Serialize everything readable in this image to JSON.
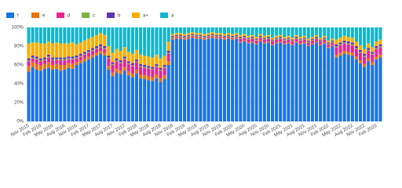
{
  "chart_data": {
    "type": "stacked_bar",
    "categories": [
      "Nov 2015",
      null,
      null,
      "Feb 2016",
      null,
      null,
      "May 2016",
      null,
      null,
      "Aug 2016",
      null,
      null,
      "Nov 2016",
      null,
      null,
      "Feb 2017",
      null,
      null,
      "May 2017",
      null,
      null,
      "Aug 2017",
      null,
      null,
      "Nov 2017",
      null,
      null,
      "Feb 2018",
      null,
      null,
      "May 2018",
      null,
      null,
      "Aug 2018",
      null,
      null,
      "Nov 2018",
      null,
      null,
      "Feb 2019",
      null,
      null,
      "May 2019",
      null,
      null,
      "Aug 2019",
      null,
      null,
      "Nov 2019",
      null,
      null,
      "Feb 2020",
      null,
      null,
      "May 2020",
      null,
      null,
      "Aug 2020",
      null,
      null,
      "Nov 2020",
      null,
      null,
      "Feb 2021",
      null,
      null,
      "May 2021",
      null,
      null,
      "Aug 2021",
      null,
      null,
      "Nov 2021",
      null,
      null,
      "Feb 2022",
      null,
      null,
      "May 2022",
      null,
      null,
      "Aug 2022",
      null,
      null,
      "Nov 2022",
      null,
      null,
      "Feb 2023",
      null
    ],
    "series": [
      {
        "name": "f",
        "color": "#1a73e8",
        "values": [
          53,
          58,
          55,
          54,
          56,
          57,
          55,
          56,
          54,
          55,
          57,
          56,
          60,
          62,
          64,
          66,
          68,
          70,
          72,
          70,
          55,
          48,
          52,
          50,
          54,
          49,
          47,
          51,
          46,
          45,
          44,
          43,
          46,
          42,
          45,
          60,
          87,
          88,
          88,
          87,
          88,
          89,
          88,
          88,
          87,
          88,
          89,
          88,
          88,
          87,
          88,
          87,
          88,
          84,
          85,
          83,
          84,
          82,
          85,
          83,
          84,
          81,
          83,
          84,
          82,
          83,
          81,
          84,
          82,
          83,
          80,
          82,
          84,
          81,
          83,
          78,
          80,
          68,
          70,
          72,
          71,
          70,
          66,
          62,
          58,
          64,
          60,
          66,
          68
        ]
      },
      {
        "name": "e",
        "color": "#e8710a",
        "values": [
          6,
          5,
          6,
          5,
          5,
          6,
          5,
          5,
          6,
          5,
          5,
          5,
          3,
          3,
          3,
          3,
          3,
          3,
          3,
          3,
          4,
          4,
          4,
          4,
          4,
          4,
          4,
          4,
          4,
          4,
          4,
          4,
          4,
          4,
          4,
          4,
          1,
          1,
          1,
          1,
          1,
          1,
          1,
          1,
          1,
          1,
          1,
          1,
          1,
          1,
          1,
          1,
          1,
          1,
          1,
          1,
          1,
          1,
          1,
          1,
          1,
          1,
          1,
          1,
          1,
          1,
          1,
          1,
          1,
          1,
          1,
          1,
          1,
          1,
          1,
          1,
          1,
          3,
          3,
          3,
          3,
          3,
          3,
          3,
          3,
          3,
          3,
          3,
          3
        ]
      },
      {
        "name": "d",
        "color": "#e52592",
        "values": [
          5,
          4,
          5,
          5,
          4,
          5,
          5,
          4,
          5,
          5,
          4,
          5,
          4,
          4,
          4,
          4,
          4,
          4,
          4,
          4,
          8,
          8,
          8,
          8,
          8,
          8,
          8,
          8,
          8,
          8,
          8,
          8,
          8,
          8,
          8,
          8,
          1,
          1,
          1,
          1,
          1,
          1,
          1,
          1,
          1,
          1,
          1,
          1,
          1,
          1,
          1,
          1,
          1,
          3,
          3,
          3,
          3,
          3,
          3,
          3,
          3,
          3,
          3,
          3,
          3,
          3,
          3,
          3,
          3,
          3,
          3,
          3,
          3,
          3,
          3,
          3,
          3,
          8,
          8,
          8,
          8,
          8,
          8,
          8,
          8,
          8,
          8,
          8,
          8
        ]
      },
      {
        "name": "c",
        "color": "#7cb342",
        "values": [
          1,
          1,
          1,
          1,
          1,
          1,
          1,
          1,
          1,
          1,
          1,
          1,
          1,
          1,
          1,
          1,
          1,
          1,
          1,
          1,
          1,
          1,
          1,
          1,
          1,
          1,
          1,
          1,
          1,
          1,
          1,
          1,
          1,
          1,
          1,
          1,
          1,
          1,
          1,
          1,
          1,
          1,
          1,
          1,
          1,
          1,
          1,
          1,
          1,
          1,
          1,
          1,
          1,
          1,
          1,
          1,
          1,
          1,
          1,
          1,
          1,
          1,
          1,
          1,
          1,
          1,
          1,
          1,
          1,
          1,
          1,
          1,
          1,
          1,
          1,
          1,
          1,
          1,
          1,
          1,
          1,
          1,
          1,
          1,
          1,
          1,
          1,
          1,
          1
        ]
      },
      {
        "name": "b",
        "color": "#5e35b1",
        "values": [
          2,
          2,
          2,
          2,
          2,
          2,
          2,
          2,
          2,
          2,
          2,
          2,
          2,
          2,
          2,
          2,
          2,
          2,
          2,
          2,
          2,
          2,
          2,
          2,
          2,
          2,
          2,
          2,
          2,
          2,
          2,
          2,
          2,
          2,
          2,
          2,
          1,
          1,
          1,
          1,
          1,
          1,
          1,
          1,
          1,
          1,
          1,
          1,
          1,
          1,
          1,
          1,
          1,
          1,
          1,
          1,
          1,
          1,
          1,
          1,
          1,
          1,
          1,
          1,
          1,
          1,
          1,
          1,
          1,
          1,
          1,
          1,
          1,
          1,
          1,
          1,
          1,
          2,
          2,
          2,
          2,
          2,
          2,
          2,
          2,
          2,
          2,
          2,
          2
        ]
      },
      {
        "name": "a+",
        "color": "#f9ab00",
        "values": [
          16,
          14,
          15,
          16,
          15,
          14,
          15,
          16,
          15,
          15,
          14,
          15,
          12,
          12,
          12,
          12,
          12,
          12,
          12,
          12,
          10,
          10,
          10,
          10,
          10,
          10,
          10,
          10,
          10,
          10,
          10,
          10,
          10,
          10,
          10,
          10,
          2,
          2,
          2,
          2,
          2,
          2,
          2,
          2,
          2,
          2,
          2,
          2,
          2,
          2,
          2,
          2,
          2,
          2,
          2,
          2,
          2,
          2,
          2,
          2,
          2,
          2,
          2,
          2,
          2,
          2,
          2,
          2,
          2,
          2,
          2,
          2,
          2,
          2,
          2,
          2,
          2,
          5,
          5,
          5,
          5,
          5,
          5,
          5,
          5,
          5,
          5,
          5,
          5
        ]
      },
      {
        "name": "a",
        "color": "#12b5cb",
        "values": [
          17,
          16,
          16,
          17,
          17,
          15,
          17,
          16,
          17,
          17,
          17,
          16,
          18,
          16,
          14,
          12,
          10,
          8,
          6,
          8,
          20,
          27,
          23,
          25,
          21,
          26,
          28,
          24,
          29,
          30,
          31,
          32,
          29,
          33,
          30,
          15,
          7,
          6,
          6,
          7,
          6,
          5,
          6,
          6,
          7,
          6,
          5,
          6,
          6,
          7,
          6,
          7,
          6,
          8,
          7,
          9,
          8,
          10,
          7,
          9,
          8,
          11,
          9,
          8,
          10,
          9,
          11,
          8,
          10,
          9,
          12,
          10,
          8,
          11,
          9,
          14,
          12,
          13,
          11,
          9,
          10,
          11,
          15,
          19,
          23,
          17,
          21,
          15,
          13
        ]
      }
    ],
    "ylim": [
      0,
      100
    ],
    "yticks": [
      {
        "value": 0,
        "label": "0%"
      },
      {
        "value": 20,
        "label": "20%"
      },
      {
        "value": 40,
        "label": "40%"
      },
      {
        "value": 60,
        "label": "60%"
      },
      {
        "value": 80,
        "label": "80%"
      },
      {
        "value": 100,
        "label": "100%"
      }
    ],
    "grid": true
  }
}
